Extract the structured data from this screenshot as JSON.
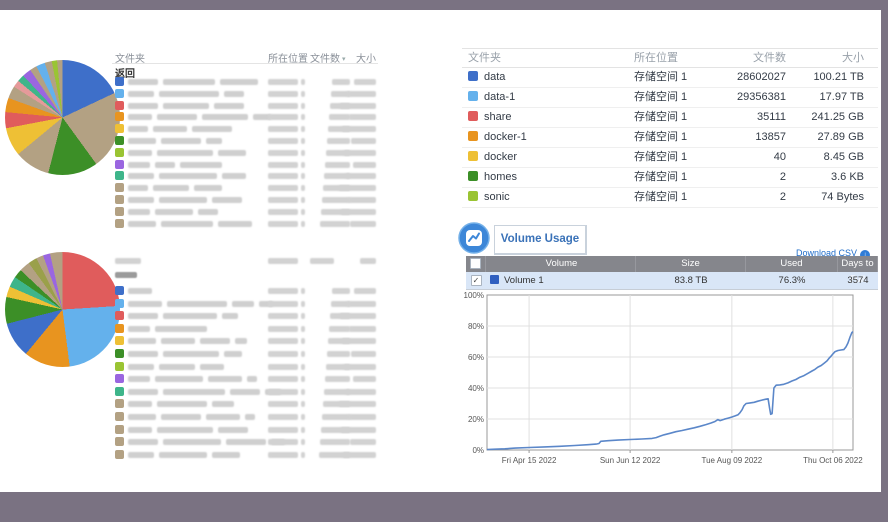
{
  "frame_color": "#7a7282",
  "palette": {
    "blue": "#3e6fc9",
    "lightblue": "#64b1ec",
    "red": "#e05c5c",
    "orange": "#e8941f",
    "yellow": "#eec035",
    "green": "#3c8f27",
    "lime": "#9ac433",
    "purple": "#9a66e0",
    "teal": "#3eb58a",
    "tan": "#b3a183",
    "olive": "#9aa04a",
    "pink": "#e59a9a"
  },
  "left": {
    "table1": {
      "headers": {
        "folder": "文件夹",
        "location": "所在位置",
        "count": "文件数",
        "size": "大小"
      },
      "back_label": "返回",
      "rows": [
        {
          "c": "blue",
          "segs": [
            30,
            52,
            38
          ]
        },
        {
          "c": "lightblue",
          "segs": [
            26,
            60,
            20
          ]
        },
        {
          "c": "red",
          "segs": [
            30,
            46,
            30
          ]
        },
        {
          "c": "orange",
          "segs": [
            24,
            40,
            46,
            18
          ]
        },
        {
          "c": "yellow",
          "segs": [
            20,
            34,
            40
          ]
        },
        {
          "c": "green",
          "segs": [
            28,
            40,
            16
          ]
        },
        {
          "c": "lime",
          "segs": [
            24,
            56,
            28
          ]
        },
        {
          "c": "purple",
          "segs": [
            22,
            20,
            42
          ]
        },
        {
          "c": "teal",
          "segs": [
            26,
            58,
            24
          ]
        },
        {
          "c": "tan",
          "segs": [
            20,
            36,
            28
          ]
        },
        {
          "c": "tan",
          "segs": [
            26,
            48,
            30
          ]
        },
        {
          "c": "tan",
          "segs": [
            22,
            38,
            20
          ]
        },
        {
          "c": "tan",
          "segs": [
            28,
            52,
            34
          ]
        }
      ]
    },
    "table2": {
      "header_blurred": true,
      "back_blurred": true,
      "rows": [
        {
          "c": "blue",
          "segs": [
            24
          ]
        },
        {
          "c": "lightblue",
          "segs": [
            34,
            60,
            22,
            14
          ]
        },
        {
          "c": "red",
          "segs": [
            30,
            54,
            16
          ]
        },
        {
          "c": "orange",
          "segs": [
            22,
            52
          ]
        },
        {
          "c": "yellow",
          "segs": [
            28,
            34,
            30,
            12
          ]
        },
        {
          "c": "green",
          "segs": [
            30,
            56,
            18
          ]
        },
        {
          "c": "lime",
          "segs": [
            26,
            36,
            24
          ]
        },
        {
          "c": "purple",
          "segs": [
            22,
            48,
            34,
            10
          ]
        },
        {
          "c": "teal",
          "segs": [
            30,
            62,
            30,
            16
          ]
        },
        {
          "c": "tan",
          "segs": [
            24,
            50,
            22
          ]
        },
        {
          "c": "tan",
          "segs": [
            28,
            40,
            34,
            10
          ]
        },
        {
          "c": "tan",
          "segs": [
            24,
            56,
            30
          ]
        },
        {
          "c": "tan",
          "segs": [
            30,
            58,
            40,
            14
          ]
        },
        {
          "c": "tan",
          "segs": [
            26,
            48,
            28
          ]
        }
      ]
    }
  },
  "right": {
    "folder_table": {
      "headers": {
        "folder": "文件夹",
        "location": "所在位置",
        "count": "文件数",
        "size": "大小"
      },
      "rows": [
        {
          "name": "data",
          "color": "blue",
          "location": "存储空间 1",
          "count": "28602027",
          "size": "100.21 TB"
        },
        {
          "name": "data-1",
          "color": "lightblue",
          "location": "存储空间 1",
          "count": "29356381",
          "size": "17.97 TB"
        },
        {
          "name": "share",
          "color": "red",
          "location": "存储空间 1",
          "count": "35111",
          "size": "241.25 GB"
        },
        {
          "name": "docker-1",
          "color": "orange",
          "location": "存储空间 1",
          "count": "13857",
          "size": "27.89 GB"
        },
        {
          "name": "docker",
          "color": "yellow",
          "location": "存储空间 1",
          "count": "40",
          "size": "8.45 GB"
        },
        {
          "name": "homes",
          "color": "green",
          "location": "存储空间 1",
          "count": "2",
          "size": "3.6 KB"
        },
        {
          "name": "sonic",
          "color": "lime",
          "location": "存储空间 1",
          "count": "2",
          "size": "74 Bytes"
        }
      ]
    },
    "volume_usage": {
      "title": "Volume Usage",
      "download_label": "Download CSV",
      "table": {
        "headers": [
          "Volume",
          "Size",
          "Used",
          "Days to Full"
        ],
        "rows": [
          {
            "name": "Volume 1",
            "size": "83.8 TB",
            "used": "76.3%",
            "days": "3574",
            "checked": true
          }
        ]
      }
    }
  },
  "chart_data": [
    {
      "type": "pie",
      "name": "folder-size-pie-top",
      "slices": [
        [
          "blue",
          18
        ],
        [
          "tan",
          22
        ],
        [
          "green",
          14
        ],
        [
          "tan",
          10
        ],
        [
          "yellow",
          8
        ],
        [
          "red",
          4.5
        ],
        [
          "orange",
          4
        ],
        [
          "tan",
          3.5
        ],
        [
          "pink",
          2
        ],
        [
          "teal",
          2
        ],
        [
          "purple",
          2.5
        ],
        [
          "tan",
          2
        ],
        [
          "lightblue",
          2.5
        ],
        [
          "tan",
          2
        ],
        [
          "lime",
          1.5
        ],
        [
          "tan",
          1.5
        ]
      ]
    },
    {
      "type": "pie",
      "name": "folder-size-pie-bottom",
      "slices": [
        [
          "red",
          24
        ],
        [
          "lightblue",
          24
        ],
        [
          "orange",
          13
        ],
        [
          "blue",
          10
        ],
        [
          "green",
          7.5
        ],
        [
          "yellow",
          3
        ],
        [
          "teal",
          3
        ],
        [
          "green",
          2.5
        ],
        [
          "tan",
          3
        ],
        [
          "olive",
          2.5
        ],
        [
          "tan",
          2
        ],
        [
          "purple",
          2
        ],
        [
          "tan",
          3.5
        ]
      ]
    },
    {
      "type": "line",
      "name": "volume-usage-over-time",
      "series": [
        {
          "name": "Volume 1",
          "color": "#5b87c9",
          "points": [
            [
              0,
              0.3
            ],
            [
              0.022,
              0.5
            ],
            [
              0.049,
              0.8
            ],
            [
              0.077,
              1.2
            ],
            [
              0.115,
              1.6
            ],
            [
              0.158,
              2
            ],
            [
              0.199,
              2.4
            ],
            [
              0.24,
              2.9
            ],
            [
              0.276,
              3.4
            ],
            [
              0.298,
              3.8
            ],
            [
              0.306,
              4.2
            ],
            [
              0.311,
              5.6
            ],
            [
              0.331,
              6
            ],
            [
              0.358,
              6.4
            ],
            [
              0.391,
              6.8
            ],
            [
              0.423,
              7.1
            ],
            [
              0.451,
              7.5
            ],
            [
              0.462,
              8
            ],
            [
              0.473,
              9
            ],
            [
              0.484,
              9.8
            ],
            [
              0.5,
              10.8
            ],
            [
              0.516,
              11.8
            ],
            [
              0.533,
              12.6
            ],
            [
              0.549,
              13.4
            ],
            [
              0.566,
              14.3
            ],
            [
              0.582,
              15.3
            ],
            [
              0.598,
              16.4
            ],
            [
              0.612,
              17.4
            ],
            [
              0.623,
              18.4
            ],
            [
              0.631,
              19.6
            ],
            [
              0.637,
              19
            ],
            [
              0.648,
              19.9
            ],
            [
              0.659,
              20.6
            ],
            [
              0.669,
              21.3
            ],
            [
              0.678,
              22
            ],
            [
              0.686,
              22.8
            ],
            [
              0.691,
              24
            ],
            [
              0.697,
              26
            ],
            [
              0.702,
              28.5
            ],
            [
              0.708,
              30
            ],
            [
              0.719,
              30.4
            ],
            [
              0.73,
              30.8
            ],
            [
              0.74,
              31.5
            ],
            [
              0.751,
              32.2
            ],
            [
              0.762,
              32.8
            ],
            [
              0.768,
              33
            ],
            [
              0.772,
              27
            ],
            [
              0.775,
              23
            ],
            [
              0.779,
              23.5
            ],
            [
              0.784,
              40
            ],
            [
              0.79,
              41.8
            ],
            [
              0.8,
              42
            ],
            [
              0.811,
              42.4
            ],
            [
              0.822,
              43.3
            ],
            [
              0.833,
              44.5
            ],
            [
              0.844,
              45.5
            ],
            [
              0.855,
              47
            ],
            [
              0.866,
              48
            ],
            [
              0.877,
              49.5
            ],
            [
              0.888,
              51
            ],
            [
              0.896,
              52
            ],
            [
              0.904,
              53.5
            ],
            [
              0.913,
              54.5
            ],
            [
              0.921,
              56
            ],
            [
              0.929,
              57.5
            ],
            [
              0.934,
              59
            ],
            [
              0.94,
              60.5
            ],
            [
              0.945,
              62
            ],
            [
              0.951,
              63.5
            ],
            [
              0.959,
              64.2
            ],
            [
              0.967,
              64.5
            ],
            [
              0.975,
              64.8
            ],
            [
              0.981,
              66.5
            ],
            [
              0.986,
              69
            ],
            [
              0.992,
              73
            ],
            [
              0.997,
              75.8
            ],
            [
              1,
              76.3
            ]
          ]
        }
      ],
      "x_ticks": [
        {
          "label": "Fri Apr 15 2022",
          "pos": 0.115
        },
        {
          "label": "Sun Jun 12 2022",
          "pos": 0.391
        },
        {
          "label": "Tue Aug 09 2022",
          "pos": 0.669
        },
        {
          "label": "Thu Oct 06 2022",
          "pos": 0.945
        }
      ],
      "y_ticks": [
        0,
        20,
        40,
        60,
        80,
        100
      ],
      "ylim": [
        0,
        100
      ],
      "grid": true
    }
  ]
}
